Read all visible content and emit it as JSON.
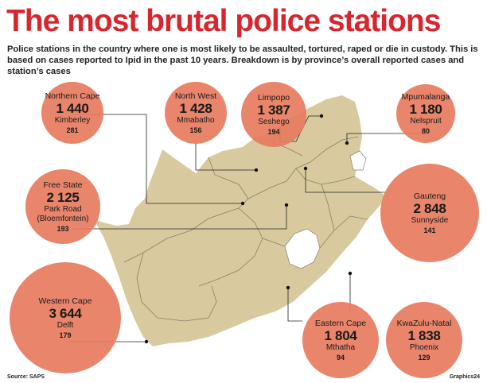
{
  "title": "The most brutal police stations",
  "subtitle": "Police stations in the country where one is most likely to be assaulted, tortured, raped or die in custody. This is based on cases reported to Ipid in the past 10 years. Breakdown is by province’s overall reported cases and station’s cases",
  "provinces": [
    {
      "id": "northern-cape",
      "province": "Northern Cape",
      "total": "1 440",
      "station": "Kimberley",
      "station_cases": "281"
    },
    {
      "id": "north-west",
      "province": "North West",
      "total": "1 428",
      "station": "Mmabatho",
      "station_cases": "156"
    },
    {
      "id": "limpopo",
      "province": "Limpopo",
      "total": "1 387",
      "station": "Seshego",
      "station_cases": "194"
    },
    {
      "id": "mpumalanga",
      "province": "Mpumalanga",
      "total": "1 180",
      "station": "Nelspruit",
      "station_cases": "80"
    },
    {
      "id": "free-state",
      "province": "Free State",
      "total": "2 125",
      "station": "Park Road (Bloemfontein)",
      "station_cases": "193"
    },
    {
      "id": "gauteng",
      "province": "Gauteng",
      "total": "2 848",
      "station": "Sunnyside",
      "station_cases": "141"
    },
    {
      "id": "western-cape",
      "province": "Western Cape",
      "total": "3 644",
      "station": "Delft",
      "station_cases": "179"
    },
    {
      "id": "eastern-cape",
      "province": "Eastern Cape",
      "total": "1 804",
      "station": "Mthatha",
      "station_cases": "94"
    },
    {
      "id": "kwazulu-natal",
      "province": "KwaZulu-Natal",
      "total": "1 838",
      "station": "Phoenix",
      "station_cases": "129"
    }
  ],
  "source": "Source: SAPS",
  "credit": "Graphics24",
  "colors": {
    "title": "#d7262e",
    "bubble": "#e77b5e",
    "land": "#d8ca9e",
    "border": "#8a7f68"
  }
}
